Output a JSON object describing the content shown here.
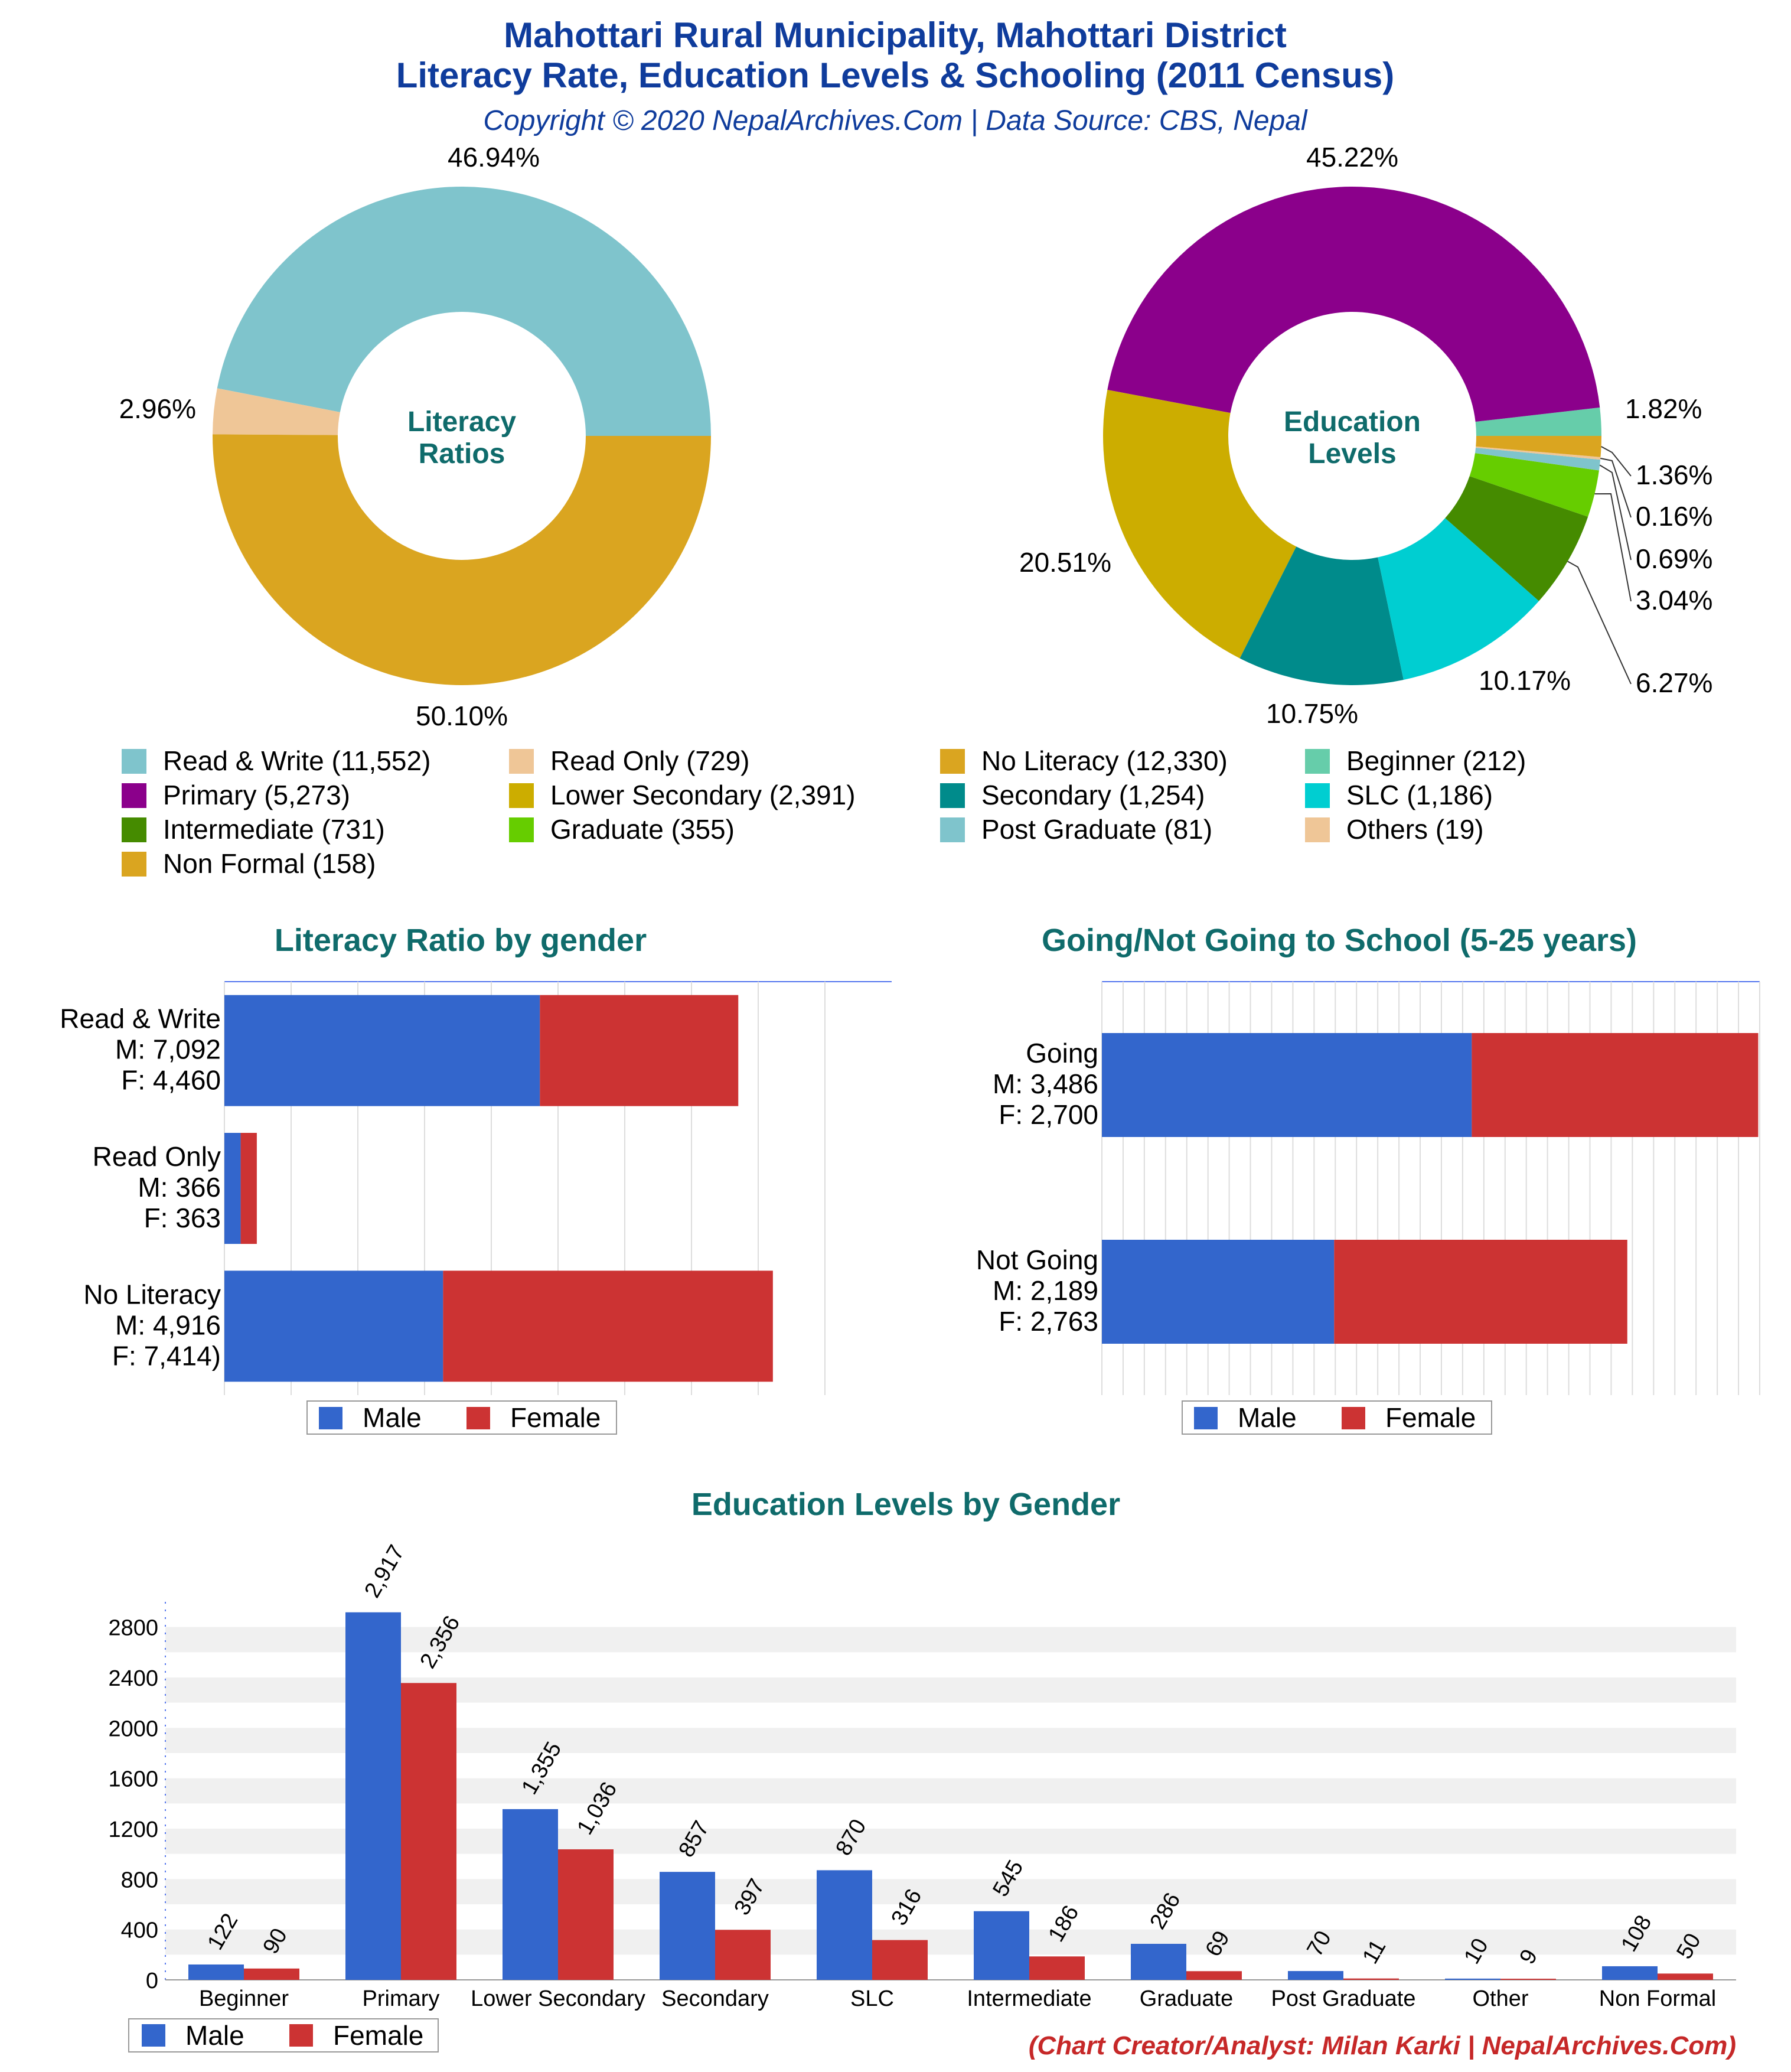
{
  "header": {
    "title_line1": "Mahottari Rural Municipality, Mahottari District",
    "title_line2": "Literacy Rate, Education Levels & Schooling (2011 Census)",
    "copyright": "Copyright © 2020 NepalArchives.Com | Data Source: CBS, Nepal"
  },
  "footer": {
    "credit": "(Chart Creator/Analyst: Milan Karki | NepalArchives.Com)"
  },
  "colors": {
    "male": "#3366cc",
    "female": "#cc3333",
    "title": "#0f3c9c",
    "chart_title": "#0f6b6b"
  },
  "chart_data": [
    {
      "type": "pie",
      "center_label": [
        "Literacy",
        "Ratios"
      ],
      "slices": [
        {
          "label": "Read & Write",
          "value": 11552,
          "percent_label": "46.94%",
          "color": "#7fc4cc"
        },
        {
          "label": "Read Only",
          "value": 729,
          "percent_label": "2.96%",
          "color": "#efc697"
        },
        {
          "label": "No Literacy",
          "value": 12330,
          "percent_label": "50.10%",
          "color": "#daa520"
        }
      ]
    },
    {
      "type": "pie",
      "center_label": [
        "Education",
        "Levels"
      ],
      "slices": [
        {
          "label": "Beginner",
          "value": 212,
          "percent_label": "1.82%",
          "color": "#66cdaa"
        },
        {
          "label": "Primary",
          "value": 5273,
          "percent_label": "45.22%",
          "color": "#8b008b"
        },
        {
          "label": "Lower Secondary",
          "value": 2391,
          "percent_label": "20.51%",
          "color": "#ccad00"
        },
        {
          "label": "Secondary",
          "value": 1254,
          "percent_label": "10.75%",
          "color": "#008b8b"
        },
        {
          "label": "SLC",
          "value": 1186,
          "percent_label": "10.17%",
          "color": "#00ced1"
        },
        {
          "label": "Intermediate",
          "value": 731,
          "percent_label": "6.27%",
          "color": "#458b00"
        },
        {
          "label": "Graduate",
          "value": 355,
          "percent_label": "3.04%",
          "color": "#66cd00"
        },
        {
          "label": "Post Graduate",
          "value": 81,
          "percent_label": "0.69%",
          "color": "#7fc4cc"
        },
        {
          "label": "Others",
          "value": 19,
          "percent_label": "0.16%",
          "color": "#efc697"
        },
        {
          "label": "Non Formal",
          "value": 158,
          "percent_label": "1.36%",
          "color": "#daa520"
        }
      ]
    },
    {
      "type": "bar",
      "orientation": "horizontal",
      "stacked": true,
      "title": "Literacy Ratio by gender",
      "categories": [
        {
          "lines": [
            "Read & Write",
            "M: 7,092",
            "F: 4,460"
          ]
        },
        {
          "lines": [
            "Read Only",
            "M: 366",
            "F: 363"
          ]
        },
        {
          "lines": [
            "No Literacy",
            "M: 4,916",
            "F: 7,414)"
          ]
        }
      ],
      "series": [
        {
          "name": "Male",
          "values": [
            7092,
            366,
            4916
          ]
        },
        {
          "name": "Female",
          "values": [
            4460,
            363,
            7414
          ]
        }
      ],
      "xlim": [
        0,
        15000
      ],
      "legend": "bottom"
    },
    {
      "type": "bar",
      "orientation": "horizontal",
      "stacked": true,
      "title": "Going/Not Going to School (5-25 years)",
      "categories": [
        {
          "lines": [
            "Going",
            "M: 3,486",
            "F: 2,700"
          ]
        },
        {
          "lines": [
            "Not Going",
            "M: 2,189",
            "F: 2,763"
          ]
        }
      ],
      "series": [
        {
          "name": "Male",
          "values": [
            3486,
            2189
          ]
        },
        {
          "name": "Female",
          "values": [
            2700,
            2763
          ]
        }
      ],
      "xlim": [
        0,
        6200
      ],
      "legend": "bottom"
    },
    {
      "type": "bar",
      "orientation": "vertical",
      "title": "Education Levels by Gender",
      "categories": [
        "Beginner",
        "Primary",
        "Lower Secondary",
        "Secondary",
        "SLC",
        "Intermediate",
        "Graduate",
        "Post Graduate",
        "Other",
        "Non Formal"
      ],
      "series": [
        {
          "name": "Male",
          "values": [
            122,
            2917,
            1355,
            857,
            870,
            545,
            286,
            70,
            10,
            108
          ],
          "labels": [
            "122",
            "2,917",
            "1,355",
            "857",
            "870",
            "545",
            "286",
            "70",
            "10",
            "108"
          ]
        },
        {
          "name": "Female",
          "values": [
            90,
            2356,
            1036,
            397,
            316,
            186,
            69,
            11,
            9,
            50
          ],
          "labels": [
            "90",
            "2,356",
            "1,036",
            "397",
            "316",
            "186",
            "69",
            "11",
            "9",
            "50"
          ]
        }
      ],
      "yticks": [
        "0",
        "400",
        "800",
        "1200",
        "1600",
        "2000",
        "2400",
        "2800"
      ],
      "ylim": [
        0,
        3000
      ],
      "legend": "bottom-left"
    }
  ]
}
